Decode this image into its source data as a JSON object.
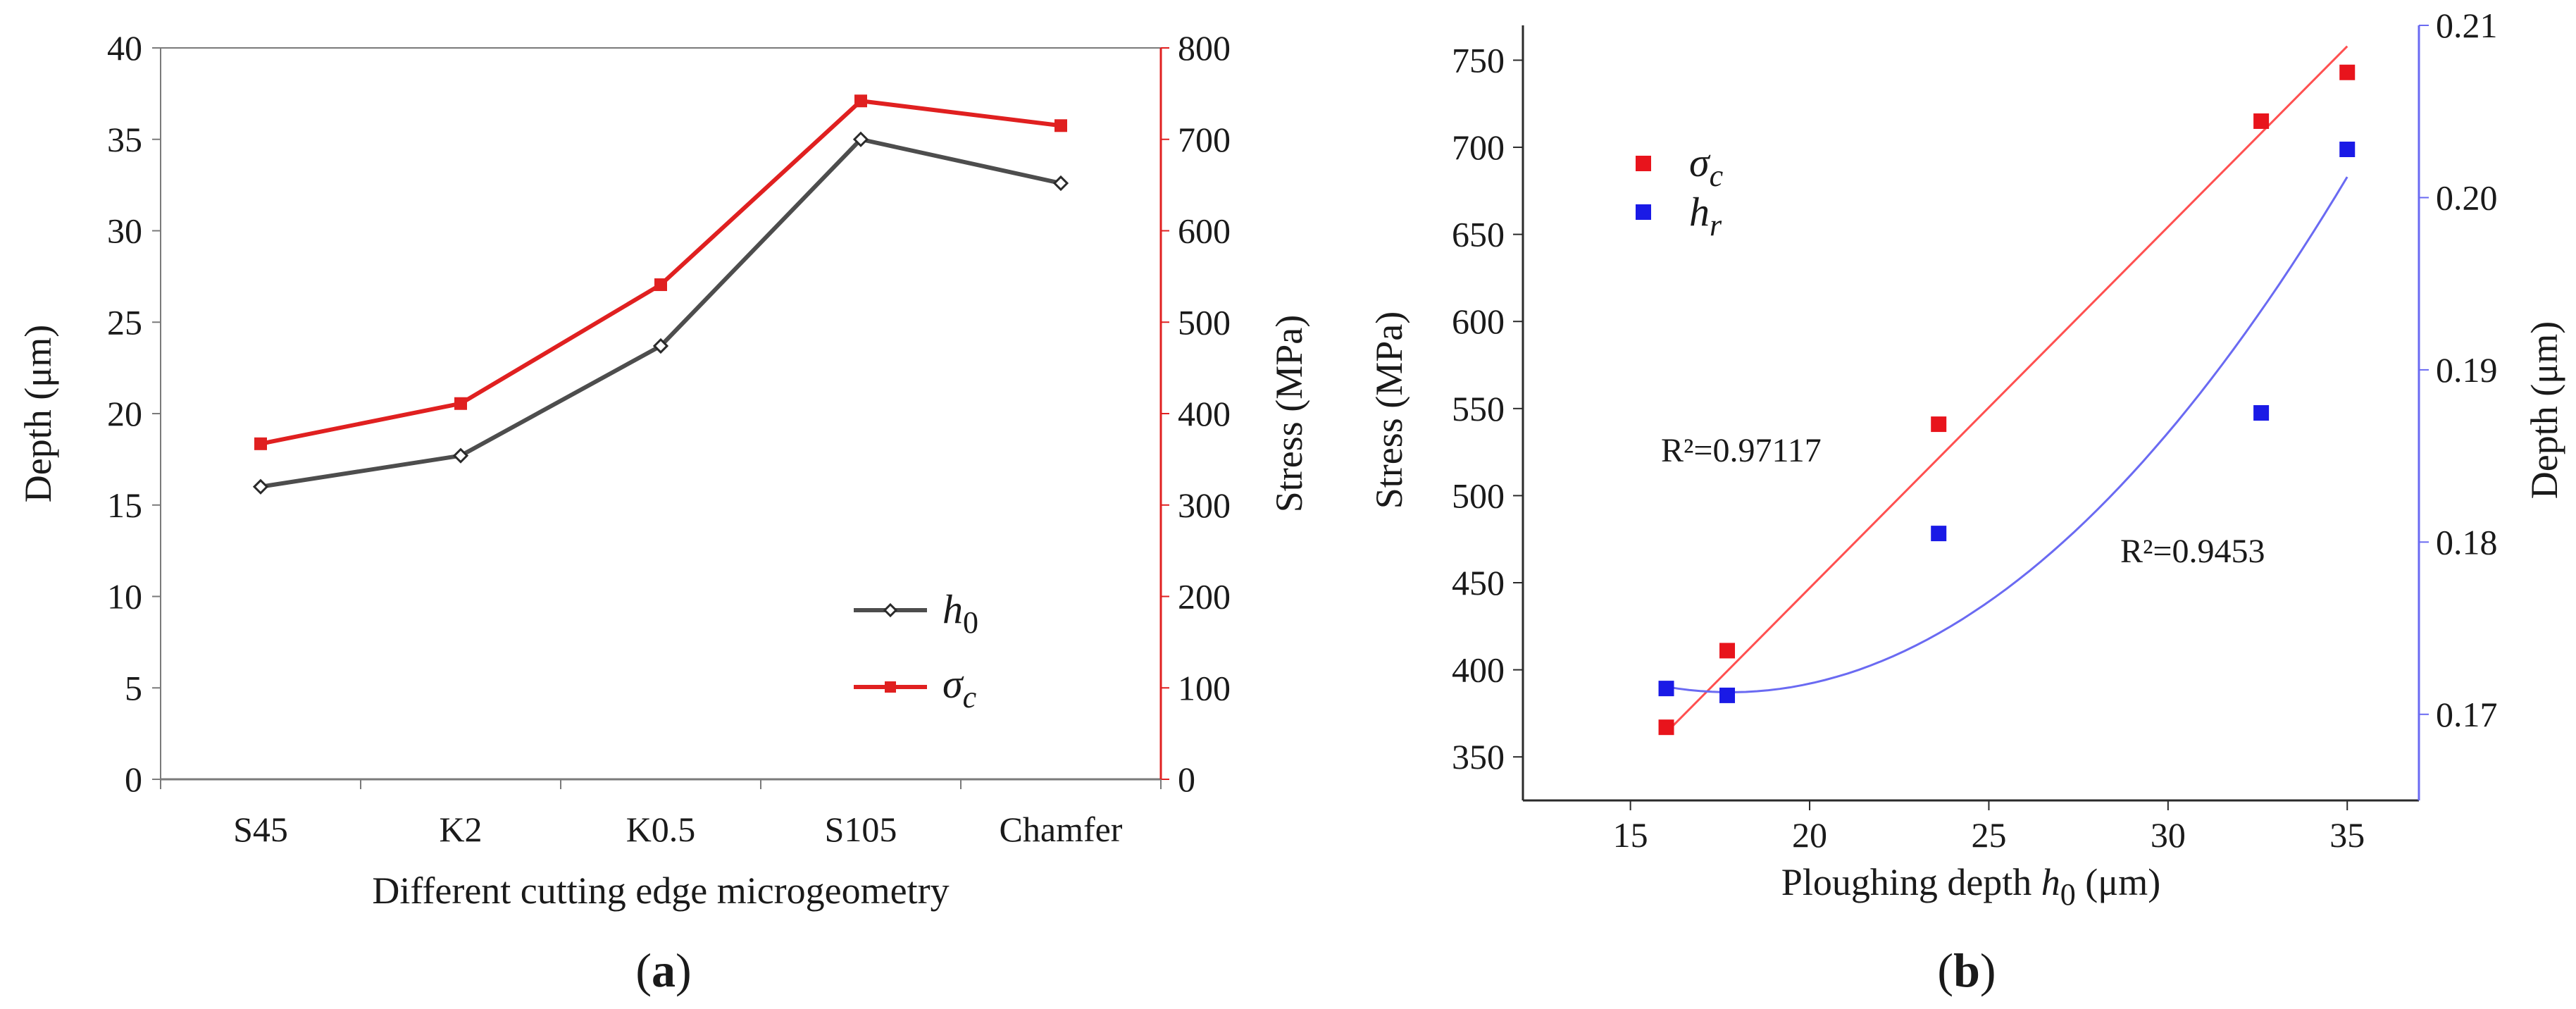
{
  "chart_data": [
    {
      "id": "a",
      "panel_label": "(a)",
      "type": "line",
      "xlabel": "Different cutting edge microgeometry",
      "ylabel_left": "Depth (μm)",
      "ylabel_right": "Stress (MPa)",
      "categories": [
        "S45",
        "K2",
        "K0.5",
        "S105",
        "Chamfer"
      ],
      "y_left_lim": [
        0,
        40
      ],
      "y_left_ticks": [
        "0",
        "5",
        "10",
        "15",
        "20",
        "25",
        "30",
        "35",
        "40"
      ],
      "y_right_lim": [
        0,
        800
      ],
      "y_right_ticks": [
        "0",
        "100",
        "200",
        "300",
        "400",
        "500",
        "600",
        "700",
        "800"
      ],
      "series": [
        {
          "name": "h",
          "sub": "0",
          "axis": "left",
          "color": "#4d4d4d",
          "marker": "diamond",
          "values": [
            16.0,
            17.7,
            23.7,
            35.0,
            32.6
          ]
        },
        {
          "name": "σ",
          "sub": "c",
          "axis": "right",
          "color": "#e02020",
          "marker": "square",
          "values": [
            367,
            411,
            541,
            742,
            715
          ]
        }
      ],
      "legend": "bottom-right"
    },
    {
      "id": "b",
      "panel_label": "(b)",
      "type": "scatter",
      "xlabel_main": "Ploughing depth ",
      "xlabel_sym": "h",
      "xlabel_sub": "0",
      "xlabel_unit": " (μm)",
      "ylabel_left": "Stress (MPa)",
      "ylabel_right": "Depth (μm)",
      "x_lim": [
        12,
        37
      ],
      "x_ticks": [
        "15",
        "20",
        "25",
        "30",
        "35"
      ],
      "y_left_lim": [
        325,
        770
      ],
      "y_left_ticks": [
        "350",
        "400",
        "450",
        "500",
        "550",
        "600",
        "650",
        "700",
        "750"
      ],
      "y_right_lim": [
        0.165,
        0.21
      ],
      "y_right_ticks": [
        "0.17",
        "0.18",
        "0.19",
        "0.20",
        "0.21"
      ],
      "series": [
        {
          "name": "σ",
          "sub": "c",
          "axis": "left",
          "color": "#e8141c",
          "x": [
            16.0,
            17.7,
            23.6,
            32.6,
            35.0
          ],
          "y": [
            367,
            411,
            541,
            715,
            743
          ]
        },
        {
          "name": "h",
          "sub": "r",
          "axis": "right",
          "color": "#1a1ae6",
          "x": [
            16.0,
            17.7,
            23.6,
            32.6,
            35.0
          ],
          "y": [
            0.1715,
            0.1711,
            0.1805,
            0.1875,
            0.2028
          ]
        }
      ],
      "fits": [
        {
          "series": "σ",
          "color": "#ff5050",
          "kind": "linear",
          "x_range": [
            16.0,
            35.0
          ],
          "y_range": [
            364,
            758
          ],
          "label": "R²=0.97117"
        },
        {
          "series": "h",
          "color": "#6a6af2",
          "kind": "quadratic",
          "x_range": [
            16.0,
            35.0
          ],
          "label": "R²=0.9453",
          "points": [
            [
              16.0,
              0.1716
            ],
            [
              18.2,
              0.1713
            ],
            [
              35.0,
              0.2012
            ]
          ]
        }
      ],
      "legend": "top-left"
    }
  ]
}
